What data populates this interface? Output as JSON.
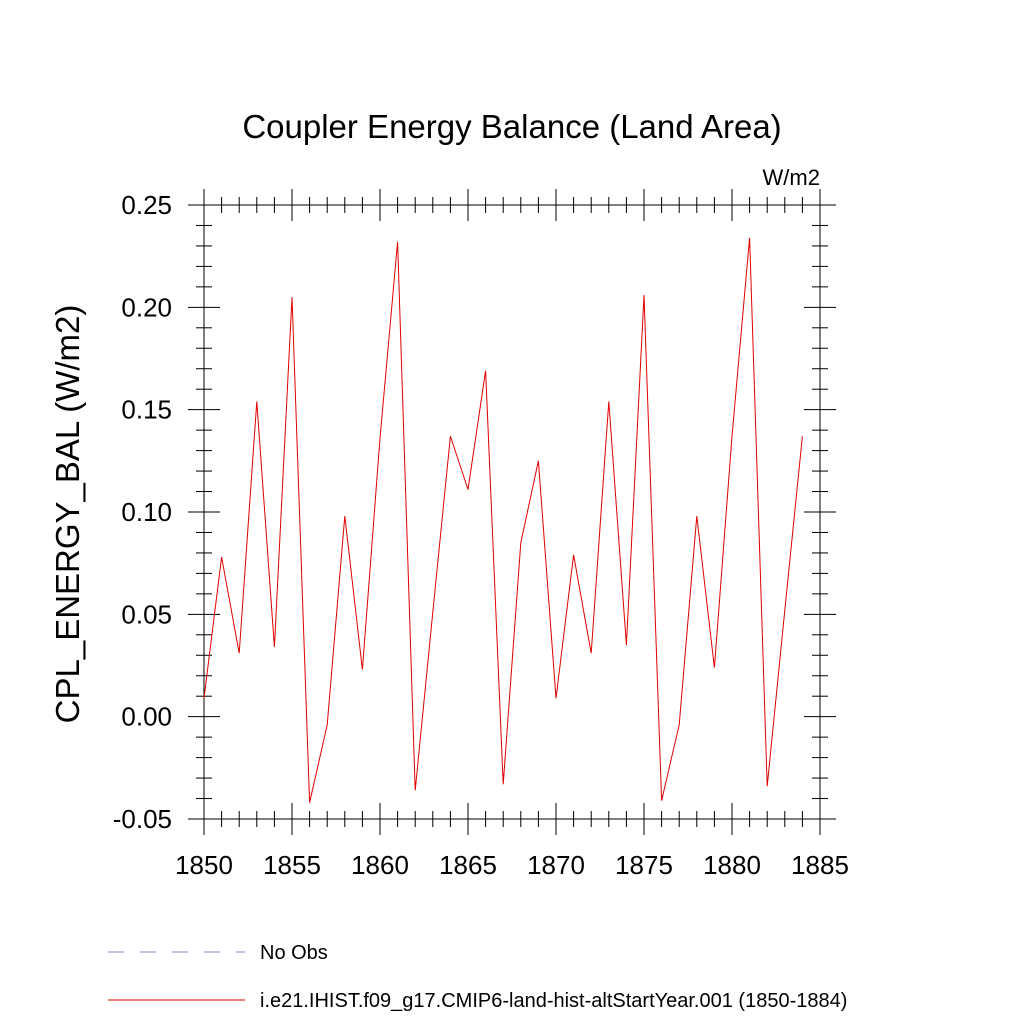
{
  "chart_data": {
    "type": "line",
    "title": "Coupler Energy Balance (Land Area)",
    "units_label": "W/m2",
    "ylabel": "CPL_ENERGY_BAL  (W/m2)",
    "xlabel": "",
    "xlim": [
      1850,
      1885
    ],
    "ylim": [
      -0.05,
      0.25
    ],
    "x_ticks": [
      "1850",
      "1855",
      "1860",
      "1865",
      "1870",
      "1875",
      "1880",
      "1885"
    ],
    "y_ticks": [
      "-0.05",
      "0.00",
      "0.05",
      "0.10",
      "0.15",
      "0.20",
      "0.25"
    ],
    "grid": false,
    "legend_placement": "bottom",
    "legend": [
      {
        "label": "No Obs",
        "style": "dashed",
        "color": "#8080c0"
      },
      {
        "label": "i.e21.IHIST.f09_g17.CMIP6-land-hist-altStartYear.001 (1850-1884)",
        "style": "solid",
        "color": "#e00000"
      }
    ],
    "series": [
      {
        "name": "i.e21.IHIST.f09_g17.CMIP6-land-hist-altStartYear.001 (1850-1884)",
        "color": "#e00000",
        "x": [
          1850,
          1851,
          1852,
          1853,
          1854,
          1855,
          1856,
          1857,
          1858,
          1859,
          1860,
          1861,
          1862,
          1863,
          1864,
          1865,
          1866,
          1867,
          1868,
          1869,
          1870,
          1871,
          1872,
          1873,
          1874,
          1875,
          1876,
          1877,
          1878,
          1879,
          1880,
          1881,
          1882,
          1883,
          1884
        ],
        "values": [
          0.009,
          0.078,
          0.031,
          0.154,
          0.034,
          0.205,
          -0.042,
          -0.004,
          0.098,
          0.023,
          0.136,
          0.232,
          -0.036,
          0.051,
          0.137,
          0.111,
          0.169,
          -0.033,
          0.085,
          0.125,
          0.009,
          0.079,
          0.031,
          0.154,
          0.035,
          0.206,
          -0.041,
          -0.004,
          0.098,
          0.024,
          0.137,
          0.234,
          -0.034,
          0.052,
          0.137
        ]
      }
    ]
  }
}
